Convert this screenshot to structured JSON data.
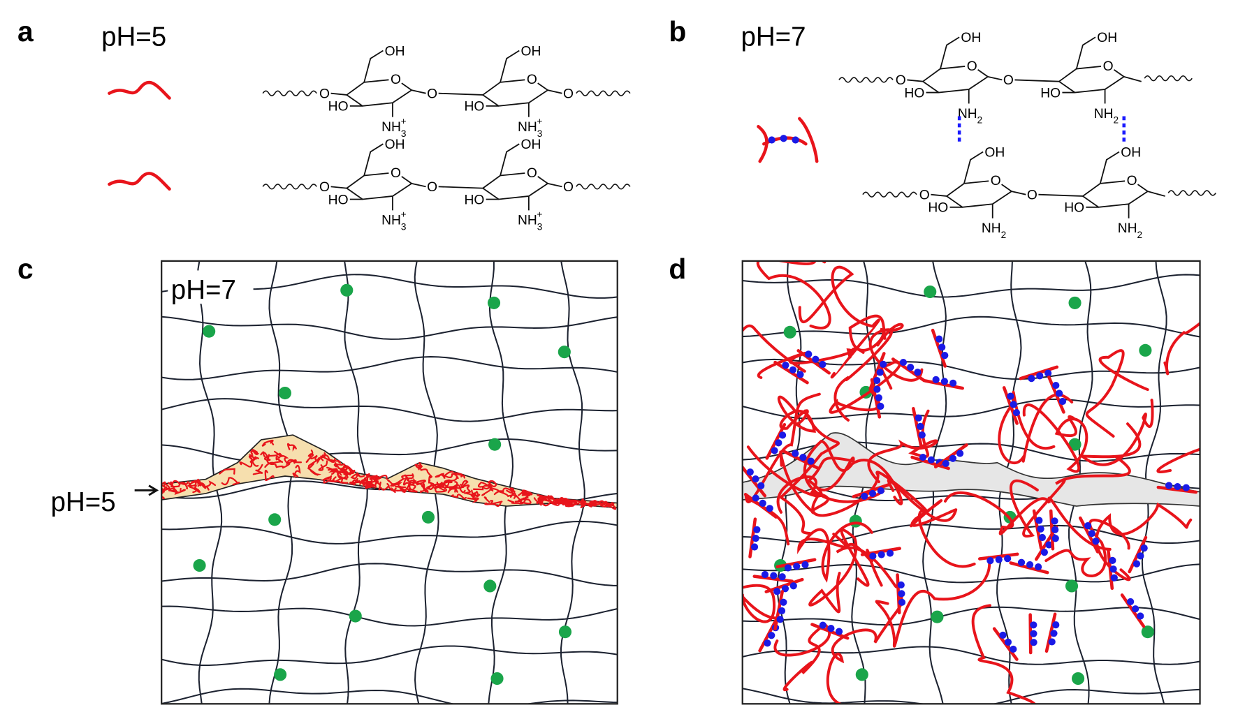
{
  "panels": {
    "a": {
      "label": "a",
      "ph": "pH=5"
    },
    "b": {
      "label": "b",
      "ph": "pH=7"
    },
    "c": {
      "label": "c",
      "ph_top": "pH=7",
      "ph_side": "pH=5"
    },
    "d": {
      "label": "d"
    }
  },
  "chemistry": {
    "hydroxyl": "OH",
    "hydroxyl_left": "HO",
    "oxygen": "O",
    "ammonium": {
      "base": "NH",
      "sub": "3",
      "sup": "+"
    },
    "amine": {
      "base": "NH",
      "sub": "2"
    }
  }
}
